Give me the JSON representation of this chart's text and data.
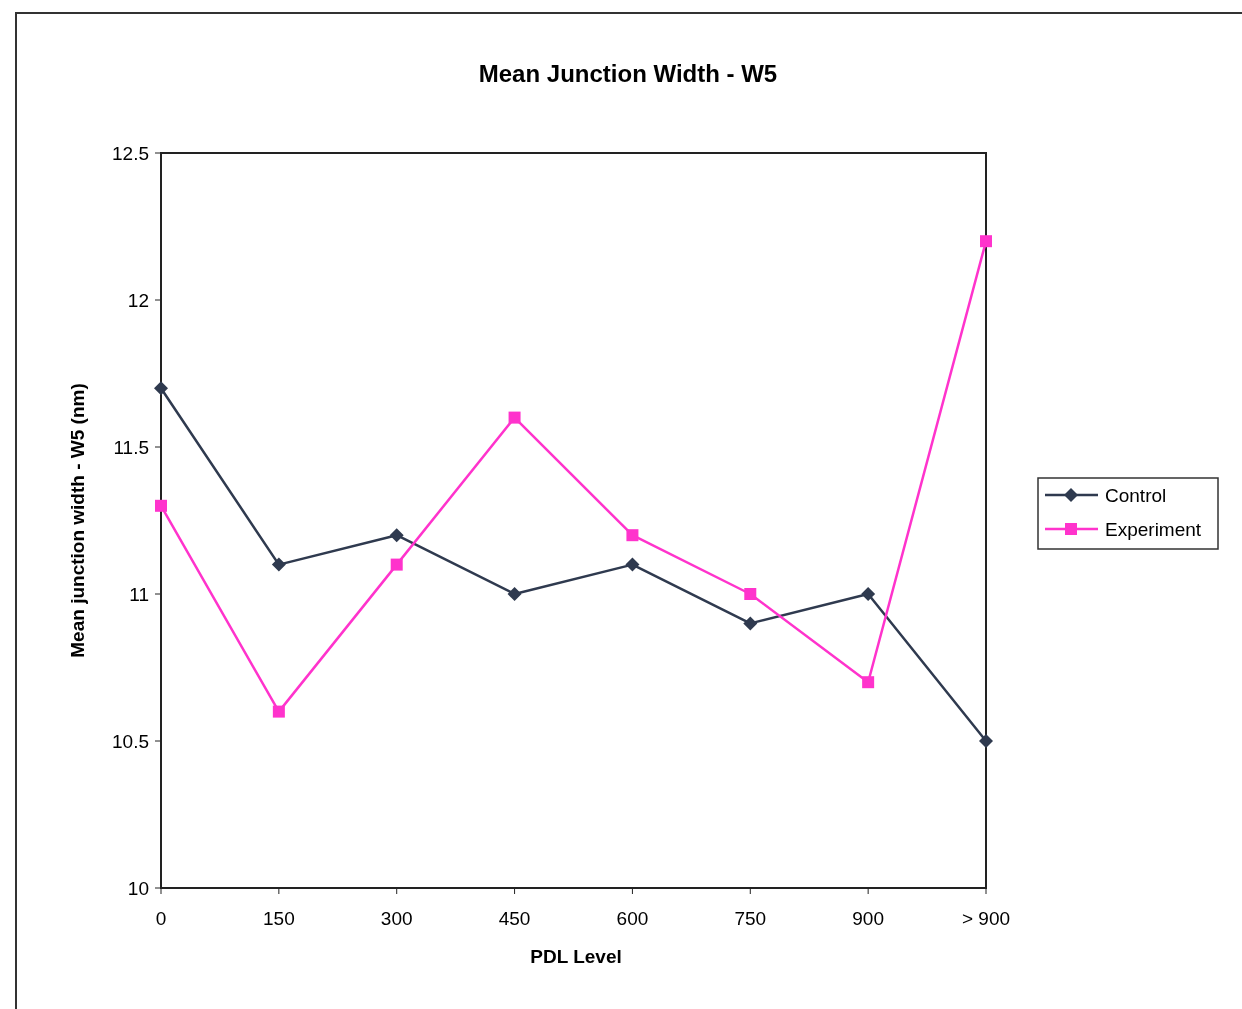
{
  "chart_data": {
    "type": "line",
    "title": "Mean Junction Width - W5",
    "xlabel": "PDL Level",
    "ylabel": "Mean junction width - W5 (nm)",
    "categories": [
      "0",
      "150",
      "300",
      "450",
      "600",
      "750",
      "900",
      "> 900"
    ],
    "series": [
      {
        "name": "Control",
        "color": "#2f3a4f",
        "marker": "diamond",
        "values": [
          11.7,
          11.1,
          11.2,
          11.0,
          11.1,
          10.9,
          11.0,
          10.5
        ]
      },
      {
        "name": "Experiment",
        "color": "#ff33cc",
        "marker": "square",
        "values": [
          11.3,
          10.6,
          11.1,
          11.6,
          11.2,
          11.0,
          10.7,
          12.2
        ]
      }
    ],
    "ylim": [
      10,
      12.5
    ],
    "yticks": [
      10,
      10.5,
      11,
      11.5,
      12,
      12.5
    ],
    "grid": false,
    "legend": "right",
    "line_style": "solid"
  }
}
